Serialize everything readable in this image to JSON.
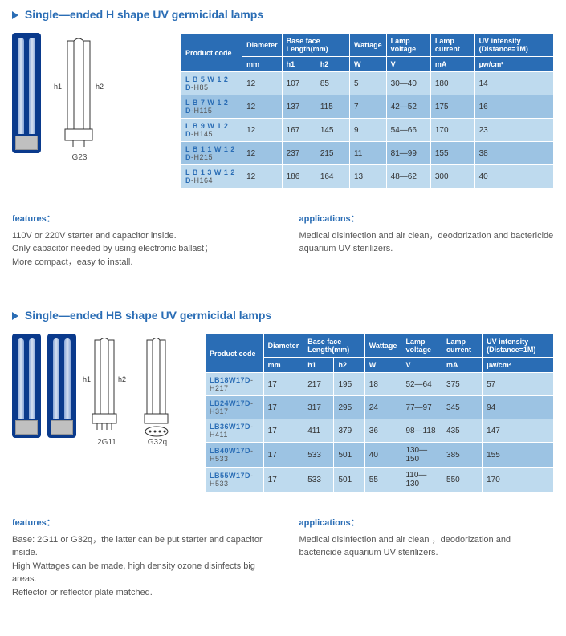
{
  "accent_color": "#2a6db5",
  "header_bg": "#2a6db5",
  "row_alt1": "#bedaee",
  "row_alt2": "#9cc3e3",
  "text_muted": "#555555",
  "section1": {
    "title": "Single—ended H shape UV germicidal lamps",
    "diagram_labels": {
      "h1": "h1",
      "h2": "h2",
      "base": "G23"
    },
    "columns": {
      "code": "Product  code",
      "diameter": "Diameter",
      "baseface": "Base face Length(mm)",
      "wattage": "Wattage",
      "lamp_voltage": "Lamp voltage",
      "lamp_current": "Lamp current",
      "uv": "UV intensity (Distance=1M)"
    },
    "units": {
      "diameter": "mm",
      "h1": "h1",
      "h2": "h2",
      "wattage": "W",
      "voltage": "V",
      "current": "mA",
      "uv": "µw/cm²"
    },
    "rows": [
      {
        "code": "L B 5 W 1 2 D",
        "suffix": "-H85",
        "diameter": "12",
        "h1": "107",
        "h2": "85",
        "w": "5",
        "v": "30—40",
        "ma": "180",
        "uv": "14"
      },
      {
        "code": "L B 7 W 1 2 D",
        "suffix": "-H115",
        "diameter": "12",
        "h1": "137",
        "h2": "115",
        "w": "7",
        "v": "42—52",
        "ma": "175",
        "uv": "16"
      },
      {
        "code": "L B 9 W 1 2 D",
        "suffix": "-H145",
        "diameter": "12",
        "h1": "167",
        "h2": "145",
        "w": "9",
        "v": "54—66",
        "ma": "170",
        "uv": "23"
      },
      {
        "code": "L B 1 1 W 1 2 D",
        "suffix": "-H215",
        "diameter": "12",
        "h1": "237",
        "h2": "215",
        "w": "11",
        "v": "81—99",
        "ma": "155",
        "uv": "38"
      },
      {
        "code": "L B 1 3 W 1 2 D",
        "suffix": "-H164",
        "diameter": "12",
        "h1": "186",
        "h2": "164",
        "w": "13",
        "v": "48—62",
        "ma": "300",
        "uv": "40"
      }
    ],
    "features_label": "features：",
    "features_text": "110V or 220V starter and capacitor inside.\nOnly capacitor needed by using electronic ballast；\nMore compact，easy to install.",
    "applications_label": "applications：",
    "applications_text": "Medical disinfection and air clean，deodorization and bactericide aquarium UV sterilizers."
  },
  "section2": {
    "title": "Single—ended HB shape UV germicidal lamps",
    "diagram_labels": {
      "h1": "h1",
      "h2": "h2",
      "base1": "2G11",
      "base2": "G32q"
    },
    "columns": {
      "code": "Product  code",
      "diameter": "Diameter",
      "baseface": "Base face Length(mm)",
      "wattage": "Wattage",
      "lamp_voltage": "Lamp voltage",
      "lamp_current": "Lamp current",
      "uv": "UV intensity (Distance=1M)"
    },
    "units": {
      "diameter": "mm",
      "h1": "h1",
      "h2": "h2",
      "wattage": "W",
      "voltage": "V",
      "current": "mA",
      "uv": "µw/cm²"
    },
    "rows": [
      {
        "code": "LB18W17D",
        "suffix": "-H217",
        "diameter": "17",
        "h1": "217",
        "h2": "195",
        "w": "18",
        "v": "52—64",
        "ma": "375",
        "uv": "57"
      },
      {
        "code": "LB24W17D",
        "suffix": "-H317",
        "diameter": "17",
        "h1": "317",
        "h2": "295",
        "w": "24",
        "v": "77—97",
        "ma": "345",
        "uv": "94"
      },
      {
        "code": "LB36W17D",
        "suffix": "-H411",
        "diameter": "17",
        "h1": "411",
        "h2": "379",
        "w": "36",
        "v": "98—118",
        "ma": "435",
        "uv": "147"
      },
      {
        "code": "LB40W17D",
        "suffix": "-H533",
        "diameter": "17",
        "h1": "533",
        "h2": "501",
        "w": "40",
        "v": "130—150",
        "ma": "385",
        "uv": "155"
      },
      {
        "code": "LB55W17D",
        "suffix": "-H533",
        "diameter": "17",
        "h1": "533",
        "h2": "501",
        "w": "55",
        "v": "110—130",
        "ma": "550",
        "uv": "170"
      }
    ],
    "features_label": "features：",
    "features_text": "Base: 2G11 or G32q，the latter can be put starter  and capacitor inside.\nHigh Wattages can be made, high density ozone disinfects big areas.\nReflector  or  reflector plate matched.",
    "applications_label": "applications：",
    "applications_text": "Medical disinfection and air clean ，deodorization and bactericide aquarium UV sterilizers."
  }
}
